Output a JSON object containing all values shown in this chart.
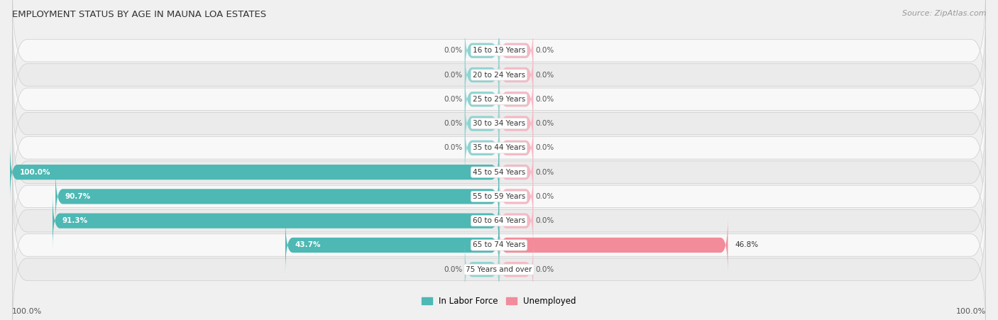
{
  "title": "EMPLOYMENT STATUS BY AGE IN MAUNA LOA ESTATES",
  "source": "Source: ZipAtlas.com",
  "categories": [
    "16 to 19 Years",
    "20 to 24 Years",
    "25 to 29 Years",
    "30 to 34 Years",
    "35 to 44 Years",
    "45 to 54 Years",
    "55 to 59 Years",
    "60 to 64 Years",
    "65 to 74 Years",
    "75 Years and over"
  ],
  "labor_force": [
    0.0,
    0.0,
    0.0,
    0.0,
    0.0,
    100.0,
    90.7,
    91.3,
    43.7,
    0.0
  ],
  "unemployed": [
    0.0,
    0.0,
    0.0,
    0.0,
    0.0,
    0.0,
    0.0,
    0.0,
    46.8,
    0.0
  ],
  "color_labor": "#4db8b4",
  "color_labor_stub": "#8dd4d1",
  "color_unemployed": "#f28b9a",
  "color_unemployed_stub": "#f5b8c4",
  "color_bg": "#f0f0f0",
  "color_row_light": "#f8f8f8",
  "color_row_dark": "#ebebeb",
  "axis_limit": 100.0,
  "stub_size": 7.0,
  "legend_labor": "In Labor Force",
  "legend_unemployed": "Unemployed",
  "bottom_left_label": "100.0%",
  "bottom_right_label": "100.0%"
}
